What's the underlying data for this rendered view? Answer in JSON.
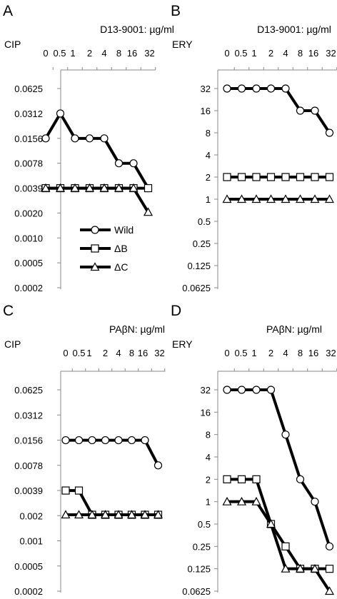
{
  "chart_data": [
    {
      "panel": "A",
      "type": "line",
      "title": "D13-9001: µg/ml",
      "ylabel": "CIP",
      "categories": [
        "0",
        "0.5",
        "1",
        "2",
        "4",
        "8",
        "16",
        "32"
      ],
      "ytick_labels": [
        "0.0625",
        "0.0312",
        "0.0156",
        "0.0078",
        "0.0039",
        "0.0020",
        "0.0010",
        "0.0005",
        "0.0002"
      ],
      "ylim": [
        0.000244,
        0.0625
      ],
      "yscale": "log2",
      "grid": false,
      "legend": "lower-left",
      "series": [
        {
          "name": "Wild",
          "marker": "circle",
          "values": [
            0.0156,
            0.0312,
            0.0156,
            0.0156,
            0.0156,
            0.0078,
            0.0078,
            0.0039
          ]
        },
        {
          "name": "ΔB",
          "marker": "square",
          "values": [
            0.0039,
            0.0039,
            0.0039,
            0.0039,
            0.0039,
            0.0039,
            0.0039,
            0.0039
          ]
        },
        {
          "name": "ΔC",
          "marker": "triangle",
          "values": [
            0.0039,
            0.0039,
            0.0039,
            0.0039,
            0.0039,
            0.0039,
            0.0039,
            0.002
          ]
        }
      ]
    },
    {
      "panel": "B",
      "type": "line",
      "title": "D13-9001: µg/ml",
      "ylabel": "ERY",
      "categories": [
        "0",
        "0.5",
        "1",
        "2",
        "4",
        "8",
        "16",
        "32"
      ],
      "ytick_labels": [
        "32",
        "16",
        "8",
        "4",
        "2",
        "1",
        "0.5",
        "0.25",
        "0.125",
        "0.0625"
      ],
      "ylim": [
        0.0625,
        32
      ],
      "yscale": "log2",
      "grid": false,
      "series": [
        {
          "marker": "circle",
          "values": [
            32,
            32,
            32,
            32,
            32,
            16,
            16,
            8
          ]
        },
        {
          "marker": "square",
          "values": [
            2,
            2,
            2,
            2,
            2,
            2,
            2,
            2
          ]
        },
        {
          "marker": "triangle",
          "values": [
            1,
            1,
            1,
            1,
            1,
            1,
            1,
            1
          ]
        }
      ]
    },
    {
      "panel": "C",
      "type": "line",
      "title": "PAβN: µg/ml",
      "ylabel": "CIP",
      "categories": [
        "0",
        "0.5",
        "1",
        "2",
        "4",
        "8",
        "16",
        "32"
      ],
      "ytick_labels": [
        "0.0625",
        "0.0312",
        "0.0156",
        "0.0078",
        "0.0039",
        "0.002",
        "0.001",
        "0.0005",
        "0.0002"
      ],
      "ylim": [
        0.000244,
        0.0625
      ],
      "yscale": "log2",
      "grid": false,
      "series": [
        {
          "marker": "circle",
          "values": [
            0.0156,
            0.0156,
            0.0156,
            0.0156,
            0.0156,
            0.0156,
            0.0156,
            0.0078
          ]
        },
        {
          "marker": "square",
          "values": [
            0.0039,
            0.0039,
            0.002,
            0.002,
            0.002,
            0.002,
            0.002,
            0.002
          ]
        },
        {
          "marker": "triangle",
          "values": [
            0.002,
            0.002,
            0.002,
            0.002,
            0.002,
            0.002,
            0.002,
            0.002
          ]
        }
      ]
    },
    {
      "panel": "D",
      "type": "line",
      "title": "PAβN: µg/ml",
      "ylabel": "ERY",
      "categories": [
        "0",
        "0.5",
        "1",
        "2",
        "4",
        "8",
        "16",
        "32"
      ],
      "ytick_labels": [
        "32",
        "16",
        "8",
        "4",
        "2",
        "1",
        "0.5",
        "0.25",
        "0.125",
        "0.0625"
      ],
      "ylim": [
        0.0625,
        32
      ],
      "yscale": "log2",
      "grid": false,
      "series": [
        {
          "marker": "circle",
          "values": [
            32,
            32,
            32,
            32,
            8,
            2,
            1,
            0.25
          ]
        },
        {
          "marker": "square",
          "values": [
            2,
            2,
            2,
            0.5,
            0.25,
            0.125,
            0.125,
            0.125
          ]
        },
        {
          "marker": "triangle",
          "values": [
            1,
            1,
            1,
            0.5,
            0.125,
            0.125,
            0.125,
            0.0625
          ]
        }
      ]
    }
  ]
}
